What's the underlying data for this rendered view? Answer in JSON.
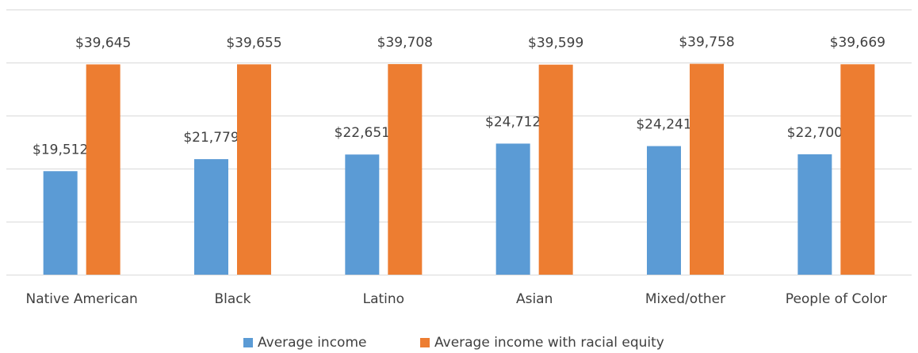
{
  "chart_data": {
    "type": "bar",
    "categories": [
      "Native American",
      "Black",
      "Latino",
      "Asian",
      "Mixed/other",
      "People of Color"
    ],
    "series": [
      {
        "name": "Average income",
        "color": "#5b9bd5",
        "values": [
          19512,
          21779,
          22651,
          24712,
          24241,
          22700
        ],
        "value_labels": [
          "$19,512",
          "$21,779",
          "$22,651",
          "$24,712",
          "$24,241",
          "$22,700"
        ]
      },
      {
        "name": "Average income with racial equity",
        "color": "#ed7d31",
        "values": [
          39645,
          39655,
          39708,
          39599,
          39758,
          39669
        ],
        "value_labels": [
          "$39,645",
          "$39,655",
          "$39,708",
          "$39,599",
          "$39,758",
          "$39,669"
        ]
      }
    ],
    "ylim": [
      0,
      50000
    ],
    "yticks": [
      0,
      10000,
      20000,
      30000,
      40000,
      50000
    ],
    "grid": true,
    "legend": "bottom"
  }
}
